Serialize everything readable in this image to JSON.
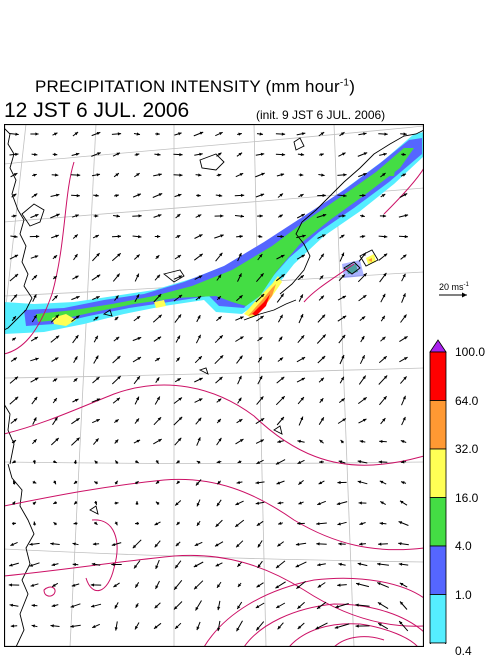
{
  "header": {
    "title": "PRECIPITATION INTENSITY (mm hour",
    "title_exp": "-1",
    "title_end": ")",
    "valid_time": "12 JST 6 JUL. 2006",
    "init_time": "(init. 9 JST 6 JUL. 2006)"
  },
  "wind_reference": {
    "label": "20 ms",
    "label_exp": "-1"
  },
  "colorbar": {
    "labels": [
      "100.0",
      "64.0",
      "32.0",
      "16.0",
      "4.0",
      "1.0",
      "0.4"
    ],
    "colors": [
      "#ff0000",
      "#ff9933",
      "#ffff55",
      "#44dd44",
      "#5566ff",
      "#55eeff"
    ],
    "top_arrow_color": "#aa22ee",
    "bottom_arrow_color": "#ffffff"
  },
  "map_style": {
    "contour_color": "#cc1166",
    "coast_color": "#000000",
    "grid_color": "#c0c0c0"
  }
}
